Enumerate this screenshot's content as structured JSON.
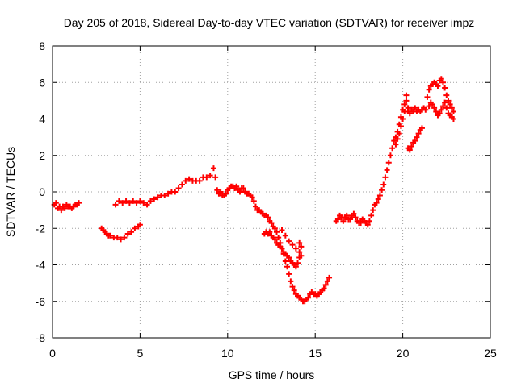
{
  "chart_data": {
    "type": "scatter",
    "title": "Day 205 of 2018, Sidereal Day-to-day VTEC variation (SDTVAR) for receiver impz",
    "xlabel": "GPS time / hours",
    "ylabel": "SDTVAR / TECUs",
    "xlim": [
      0,
      25
    ],
    "ylim": [
      -8,
      8
    ],
    "x_ticks": [
      "0",
      "5",
      "10",
      "15",
      "20",
      "25"
    ],
    "y_ticks": [
      "-8",
      "-6",
      "-4",
      "-2",
      "0",
      "2",
      "4",
      "6",
      "8"
    ],
    "grid": true,
    "legend": "none",
    "marker": "+",
    "series": [
      {
        "color": "#ff0000",
        "segments": [
          [
            [
              0.1,
              -0.7
            ],
            [
              0.2,
              -0.6
            ],
            [
              0.3,
              -0.9
            ],
            [
              0.4,
              -0.8
            ],
            [
              0.5,
              -1.0
            ],
            [
              0.6,
              -0.8
            ],
            [
              0.7,
              -0.9
            ],
            [
              0.8,
              -0.7
            ],
            [
              0.9,
              -0.8
            ],
            [
              1.0,
              -0.8
            ],
            [
              1.1,
              -0.9
            ],
            [
              1.2,
              -0.8
            ],
            [
              1.3,
              -0.7
            ],
            [
              1.4,
              -0.7
            ],
            [
              1.5,
              -0.6
            ]
          ],
          [
            [
              2.8,
              -2.0
            ],
            [
              2.9,
              -2.1
            ],
            [
              3.0,
              -2.2
            ],
            [
              3.1,
              -2.3
            ],
            [
              3.2,
              -2.4
            ],
            [
              3.3,
              -2.4
            ],
            [
              3.5,
              -2.5
            ],
            [
              3.7,
              -2.5
            ],
            [
              3.9,
              -2.6
            ],
            [
              4.1,
              -2.5
            ],
            [
              4.3,
              -2.3
            ],
            [
              4.5,
              -2.2
            ],
            [
              4.7,
              -2.0
            ],
            [
              4.9,
              -1.9
            ],
            [
              5.0,
              -1.8
            ]
          ],
          [
            [
              3.6,
              -0.7
            ],
            [
              3.8,
              -0.5
            ],
            [
              4.0,
              -0.6
            ],
            [
              4.2,
              -0.5
            ],
            [
              4.4,
              -0.6
            ],
            [
              4.6,
              -0.5
            ],
            [
              4.8,
              -0.6
            ],
            [
              5.0,
              -0.5
            ],
            [
              5.2,
              -0.6
            ],
            [
              5.4,
              -0.7
            ],
            [
              5.6,
              -0.5
            ],
            [
              5.8,
              -0.4
            ],
            [
              6.0,
              -0.3
            ],
            [
              6.2,
              -0.2
            ],
            [
              6.4,
              -0.2
            ],
            [
              6.6,
              -0.1
            ],
            [
              6.8,
              0.0
            ],
            [
              7.0,
              0.0
            ],
            [
              7.2,
              0.2
            ],
            [
              7.4,
              0.4
            ],
            [
              7.6,
              0.6
            ],
            [
              7.8,
              0.7
            ],
            [
              8.0,
              0.6
            ],
            [
              8.2,
              0.6
            ],
            [
              8.4,
              0.6
            ],
            [
              8.6,
              0.8
            ],
            [
              8.8,
              0.8
            ],
            [
              9.0,
              0.9
            ],
            [
              9.2,
              1.3
            ],
            [
              9.3,
              0.8
            ],
            [
              9.4,
              0.1
            ],
            [
              9.5,
              -0.1
            ],
            [
              9.6,
              0.0
            ],
            [
              9.7,
              -0.2
            ],
            [
              9.8,
              -0.2
            ],
            [
              9.9,
              -0.1
            ],
            [
              10.0,
              0.1
            ],
            [
              10.1,
              0.2
            ],
            [
              10.2,
              0.3
            ],
            [
              10.3,
              0.3
            ],
            [
              10.4,
              0.2
            ],
            [
              10.5,
              0.3
            ],
            [
              10.6,
              0.1
            ],
            [
              10.7,
              0.0
            ],
            [
              10.8,
              0.2
            ],
            [
              10.9,
              0.2
            ],
            [
              11.0,
              0.0
            ],
            [
              11.1,
              -0.1
            ],
            [
              11.2,
              -0.1
            ],
            [
              11.3,
              -0.2
            ],
            [
              11.4,
              -0.3
            ],
            [
              11.5,
              -0.5
            ],
            [
              11.6,
              -0.8
            ],
            [
              11.7,
              -1.0
            ],
            [
              11.8,
              -1.0
            ],
            [
              11.9,
              -1.1
            ],
            [
              12.0,
              -1.2
            ],
            [
              12.1,
              -1.3
            ],
            [
              12.2,
              -1.3
            ],
            [
              12.3,
              -1.4
            ],
            [
              12.4,
              -1.6
            ],
            [
              12.5,
              -1.7
            ],
            [
              12.6,
              -1.9
            ],
            [
              12.7,
              -2.0
            ],
            [
              12.8,
              -2.2
            ],
            [
              12.9,
              -2.5
            ],
            [
              13.0,
              -2.8
            ],
            [
              13.1,
              -3.1
            ],
            [
              13.2,
              -3.4
            ],
            [
              13.3,
              -3.8
            ],
            [
              13.4,
              -4.1
            ],
            [
              13.5,
              -4.5
            ],
            [
              13.6,
              -4.9
            ],
            [
              13.7,
              -5.2
            ],
            [
              13.8,
              -5.4
            ],
            [
              13.9,
              -5.6
            ],
            [
              14.0,
              -5.7
            ],
            [
              14.1,
              -5.8
            ],
            [
              14.2,
              -5.9
            ],
            [
              14.3,
              -6.0
            ],
            [
              14.4,
              -6.0
            ],
            [
              14.5,
              -5.9
            ],
            [
              14.6,
              -5.8
            ],
            [
              14.7,
              -5.6
            ],
            [
              14.8,
              -5.5
            ],
            [
              14.9,
              -5.6
            ],
            [
              15.0,
              -5.6
            ],
            [
              15.1,
              -5.7
            ],
            [
              15.2,
              -5.6
            ],
            [
              15.3,
              -5.5
            ],
            [
              15.4,
              -5.4
            ],
            [
              15.5,
              -5.3
            ],
            [
              15.6,
              -5.1
            ],
            [
              15.7,
              -4.9
            ],
            [
              15.8,
              -4.7
            ]
          ],
          [
            [
              12.1,
              -2.3
            ],
            [
              12.2,
              -2.2
            ],
            [
              12.3,
              -2.3
            ],
            [
              12.4,
              -2.2
            ],
            [
              12.5,
              -2.4
            ],
            [
              12.6,
              -2.5
            ],
            [
              12.7,
              -2.6
            ],
            [
              12.8,
              -2.8
            ],
            [
              12.9,
              -2.9
            ],
            [
              13.0,
              -3.0
            ],
            [
              13.1,
              -3.1
            ],
            [
              13.2,
              -3.3
            ],
            [
              13.3,
              -3.4
            ],
            [
              13.4,
              -3.5
            ],
            [
              13.5,
              -3.6
            ],
            [
              13.6,
              -3.8
            ],
            [
              13.7,
              -3.9
            ],
            [
              13.8,
              -4.0
            ],
            [
              13.9,
              -4.1
            ],
            [
              14.0,
              -3.9
            ],
            [
              14.1,
              -3.6
            ],
            [
              14.2,
              -3.0
            ],
            [
              14.1,
              -2.8
            ]
          ],
          [
            [
              13.1,
              -2.1
            ],
            [
              13.3,
              -2.4
            ],
            [
              13.5,
              -2.7
            ],
            [
              13.7,
              -2.9
            ],
            [
              13.9,
              -3.1
            ],
            [
              14.1,
              -3.3
            ],
            [
              14.2,
              -3.5
            ]
          ],
          [
            [
              16.2,
              -1.6
            ],
            [
              16.3,
              -1.5
            ],
            [
              16.4,
              -1.3
            ],
            [
              16.5,
              -1.4
            ],
            [
              16.6,
              -1.6
            ],
            [
              16.7,
              -1.4
            ],
            [
              16.8,
              -1.3
            ],
            [
              16.9,
              -1.5
            ],
            [
              17.0,
              -1.5
            ],
            [
              17.1,
              -1.3
            ],
            [
              17.2,
              -1.2
            ],
            [
              17.3,
              -1.4
            ],
            [
              17.4,
              -1.6
            ],
            [
              17.5,
              -1.7
            ],
            [
              17.6,
              -1.7
            ],
            [
              17.7,
              -1.5
            ],
            [
              17.8,
              -1.6
            ],
            [
              17.9,
              -1.7
            ],
            [
              18.0,
              -1.8
            ],
            [
              18.1,
              -1.6
            ],
            [
              18.2,
              -1.3
            ],
            [
              18.3,
              -1.0
            ],
            [
              18.4,
              -0.7
            ],
            [
              18.5,
              -0.6
            ],
            [
              18.6,
              -0.4
            ],
            [
              18.7,
              -0.2
            ],
            [
              18.8,
              0.1
            ],
            [
              18.9,
              0.4
            ],
            [
              19.0,
              0.8
            ],
            [
              19.1,
              1.2
            ],
            [
              19.2,
              1.6
            ],
            [
              19.3,
              2.0
            ],
            [
              19.4,
              2.4
            ],
            [
              19.5,
              2.8
            ],
            [
              19.6,
              2.6
            ],
            [
              19.7,
              2.9
            ],
            [
              19.8,
              3.2
            ],
            [
              19.9,
              3.6
            ],
            [
              20.0,
              4.0
            ],
            [
              20.1,
              4.4
            ],
            [
              20.2,
              5.0
            ],
            [
              20.3,
              4.4
            ],
            [
              20.4,
              4.3
            ],
            [
              20.5,
              4.5
            ],
            [
              20.6,
              4.4
            ],
            [
              20.7,
              4.6
            ],
            [
              20.8,
              4.4
            ],
            [
              20.9,
              4.5
            ],
            [
              21.0,
              4.4
            ],
            [
              21.1,
              4.5
            ],
            [
              21.2,
              4.6
            ],
            [
              21.3,
              4.5
            ],
            [
              21.4,
              5.2
            ],
            [
              21.5,
              5.6
            ],
            [
              21.6,
              5.8
            ],
            [
              21.7,
              5.9
            ],
            [
              21.8,
              6.0
            ],
            [
              21.9,
              5.9
            ],
            [
              22.0,
              5.8
            ],
            [
              22.1,
              6.1
            ],
            [
              22.2,
              6.2
            ],
            [
              22.3,
              6.0
            ],
            [
              22.4,
              5.7
            ],
            [
              22.5,
              5.3
            ],
            [
              22.6,
              5.0
            ],
            [
              22.7,
              4.8
            ],
            [
              22.8,
              4.6
            ],
            [
              22.9,
              4.4
            ]
          ],
          [
            [
              20.3,
              2.4
            ],
            [
              20.4,
              2.3
            ],
            [
              20.5,
              2.5
            ],
            [
              20.6,
              2.7
            ],
            [
              20.7,
              2.8
            ],
            [
              20.8,
              3.0
            ],
            [
              20.9,
              3.2
            ],
            [
              21.0,
              3.4
            ],
            [
              21.1,
              3.5
            ]
          ],
          [
            [
              21.5,
              4.7
            ],
            [
              21.6,
              4.9
            ],
            [
              21.7,
              4.8
            ],
            [
              21.8,
              4.6
            ],
            [
              21.9,
              4.4
            ],
            [
              22.0,
              4.2
            ],
            [
              22.1,
              4.3
            ],
            [
              22.2,
              4.5
            ],
            [
              22.3,
              4.7
            ],
            [
              22.4,
              4.9
            ],
            [
              22.5,
              4.6
            ],
            [
              22.6,
              4.3
            ],
            [
              22.7,
              4.2
            ],
            [
              22.8,
              4.1
            ],
            [
              22.9,
              4.0
            ]
          ],
          [
            [
              19.6,
              3.0
            ],
            [
              19.7,
              3.3
            ],
            [
              19.8,
              3.7
            ],
            [
              19.9,
              4.1
            ],
            [
              20.0,
              4.5
            ],
            [
              20.1,
              4.8
            ],
            [
              20.2,
              5.3
            ],
            [
              20.3,
              4.6
            ]
          ]
        ]
      }
    ]
  }
}
